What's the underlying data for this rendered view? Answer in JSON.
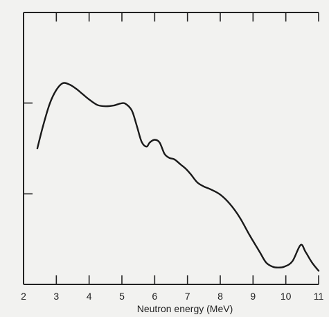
{
  "chart_data": {
    "type": "line",
    "title": "",
    "xlabel": "Neutron energy (MeV)",
    "ylabel": "",
    "xlim": [
      2,
      11
    ],
    "ylim": [
      0,
      1
    ],
    "grid": false,
    "x_ticks": [
      2,
      3,
      4,
      5,
      6,
      7,
      8,
      9,
      10,
      11
    ],
    "x_tick_labels": [
      "2",
      "3",
      "4",
      "5",
      "6",
      "7",
      "8",
      "9",
      "10",
      "11"
    ],
    "y_ticks_fraction": [
      0.333,
      0.667
    ],
    "series": [
      {
        "x": [
          2.42,
          2.6,
          2.8,
          3.0,
          3.2,
          3.4,
          3.6,
          3.8,
          4.0,
          4.25,
          4.5,
          4.75,
          4.95,
          5.1,
          5.3,
          5.45,
          5.6,
          5.75,
          5.85,
          6.0,
          6.15,
          6.3,
          6.45,
          6.6,
          6.8,
          6.95,
          7.1,
          7.3,
          7.5,
          7.7,
          8.0,
          8.3,
          8.6,
          8.9,
          9.2,
          9.4,
          9.6,
          9.75,
          9.95,
          10.2,
          10.45,
          10.6,
          10.8,
          11.0
        ],
        "y": [
          0.5,
          0.585,
          0.665,
          0.715,
          0.74,
          0.735,
          0.72,
          0.7,
          0.68,
          0.66,
          0.655,
          0.658,
          0.665,
          0.665,
          0.64,
          0.585,
          0.525,
          0.507,
          0.522,
          0.532,
          0.522,
          0.48,
          0.465,
          0.46,
          0.44,
          0.425,
          0.405,
          0.375,
          0.36,
          0.35,
          0.33,
          0.295,
          0.245,
          0.18,
          0.12,
          0.08,
          0.065,
          0.062,
          0.065,
          0.085,
          0.145,
          0.12,
          0.08,
          0.05
        ]
      }
    ]
  }
}
